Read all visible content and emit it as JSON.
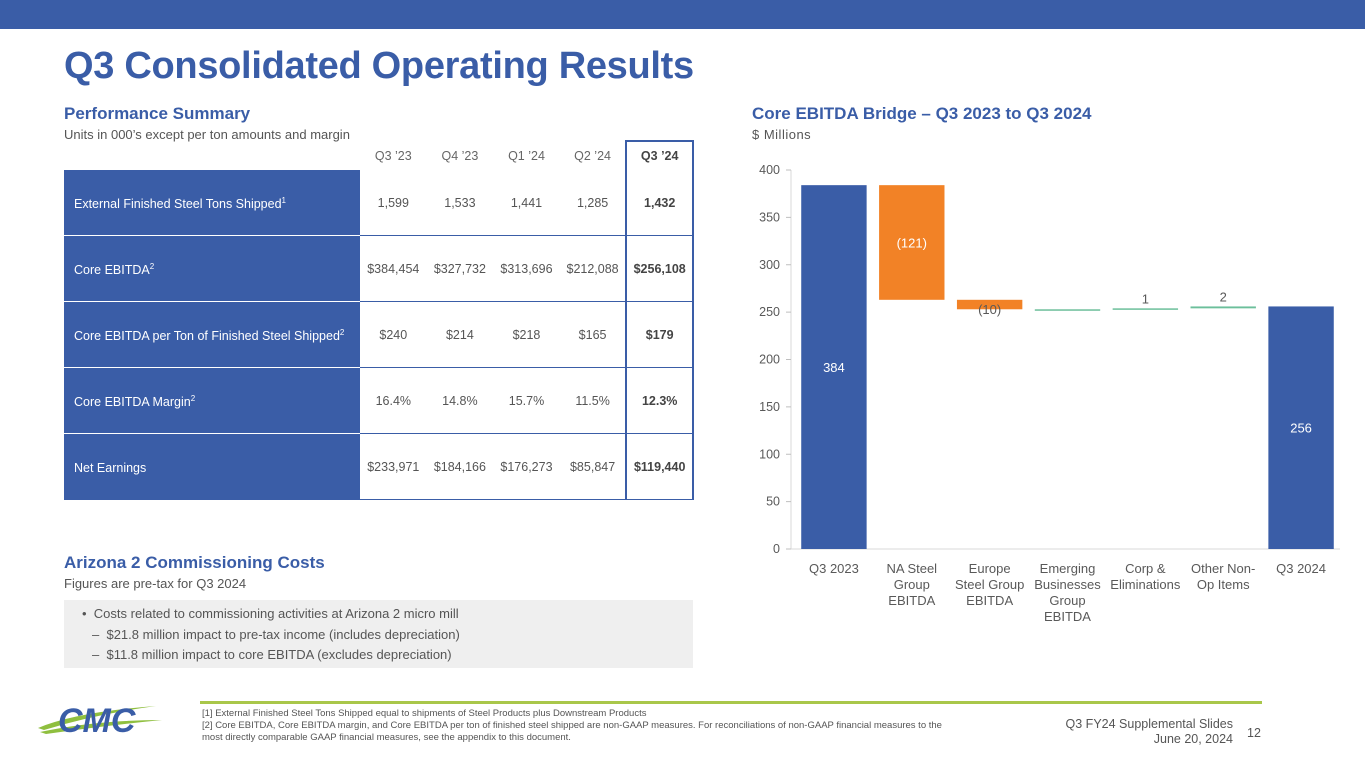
{
  "title": "Q3 Consolidated Operating Results",
  "performance": {
    "title": "Performance Summary",
    "subtitle": "Units in 000’s except per ton amounts and margin",
    "columns": [
      "Q3 ’23",
      "Q4 ’23",
      "Q1 ’24",
      "Q2 ’24",
      "Q3 ’24"
    ],
    "rows": [
      {
        "label": "External Finished Steel Tons Shipped",
        "sup": "1",
        "values": [
          "1,599",
          "1,533",
          "1,441",
          "1,285",
          "1,432"
        ]
      },
      {
        "label": "Core EBITDA",
        "sup": "2",
        "values": [
          "$384,454",
          "$327,732",
          "$313,696",
          "$212,088",
          "$256,108"
        ]
      },
      {
        "label": "Core EBITDA per Ton of Finished Steel Shipped",
        "sup": "2",
        "values": [
          "$240",
          "$214",
          "$218",
          "$165",
          "$179"
        ]
      },
      {
        "label": "Core EBITDA Margin",
        "sup": "2",
        "values": [
          "16.4%",
          "14.8%",
          "15.7%",
          "11.5%",
          "12.3%"
        ]
      },
      {
        "label": "Net Earnings",
        "sup": "",
        "values": [
          "$233,971",
          "$184,166",
          "$176,273",
          "$85,847",
          "$119,440"
        ]
      }
    ]
  },
  "arizona": {
    "title": "Arizona 2 Commissioning Costs",
    "subtitle": "Figures are pre-tax for Q3 2024",
    "bullet": "Costs related to commissioning activities at Arizona 2 micro mill",
    "sub1": "$21.8 million impact to pre-tax income (includes depreciation)",
    "sub2": "$11.8 million impact to core EBITDA (excludes depreciation)",
    "bullet_glyph": "•",
    "dash_glyph": "–"
  },
  "bridge": {
    "title": "Core EBITDA Bridge – Q3 2023 to Q3 2024",
    "subtitle": "$ Millions"
  },
  "chart_data": {
    "type": "waterfall",
    "title": "Core EBITDA Bridge – Q3 2023 to Q3 2024",
    "ylabel": "$ Millions",
    "ylim": [
      0,
      400
    ],
    "yticks": [
      0,
      50,
      100,
      150,
      200,
      250,
      300,
      350,
      400
    ],
    "steps": [
      {
        "category": "Q3 2023",
        "kind": "total",
        "value": 384,
        "label": "384",
        "color": "#3a5da7"
      },
      {
        "category": "NA Steel Group EBITDA",
        "kind": "delta",
        "value": -121,
        "label": "(121)",
        "color": "#f28226"
      },
      {
        "category": "Europe Steel Group EBITDA",
        "kind": "delta",
        "value": -10,
        "label": "(10)",
        "color": "#f28226"
      },
      {
        "category": "Emerging Businesses Group EBITDA",
        "kind": "delta",
        "value": 0,
        "label": "",
        "color": "#6cbf9b"
      },
      {
        "category": "Corp & Eliminations",
        "kind": "delta",
        "value": 1,
        "label": "1",
        "color": "#6cbf9b"
      },
      {
        "category": "Other Non-Op Items",
        "kind": "delta",
        "value": 2,
        "label": "2",
        "color": "#6cbf9b"
      },
      {
        "category": "Q3 2024",
        "kind": "total",
        "value": 256,
        "label": "256",
        "color": "#3a5da7"
      }
    ],
    "category_lines": [
      [
        "Q3 2023"
      ],
      [
        "NA Steel",
        "Group",
        "EBITDA"
      ],
      [
        "Europe",
        "Steel Group",
        "EBITDA"
      ],
      [
        "Emerging",
        "Businesses",
        "Group",
        "EBITDA"
      ],
      [
        "Corp &",
        "Eliminations"
      ],
      [
        "Other Non-",
        "Op Items"
      ],
      [
        "Q3 2024"
      ]
    ]
  },
  "footer": {
    "note1": "[1]  External Finished Steel Tons Shipped equal to shipments of Steel Products plus Downstream Products",
    "note2": "[2] Core EBITDA, Core EBITDA margin, and Core EBITDA per ton of finished steel shipped are non-GAAP measures. For reconciliations of non-GAAP financial measures to the most directly comparable GAAP financial measures, see the appendix to this document.",
    "deck": "Q3 FY24 Supplemental Slides",
    "date": "June 20, 2024",
    "page": "12",
    "logo_text": "CMC"
  }
}
